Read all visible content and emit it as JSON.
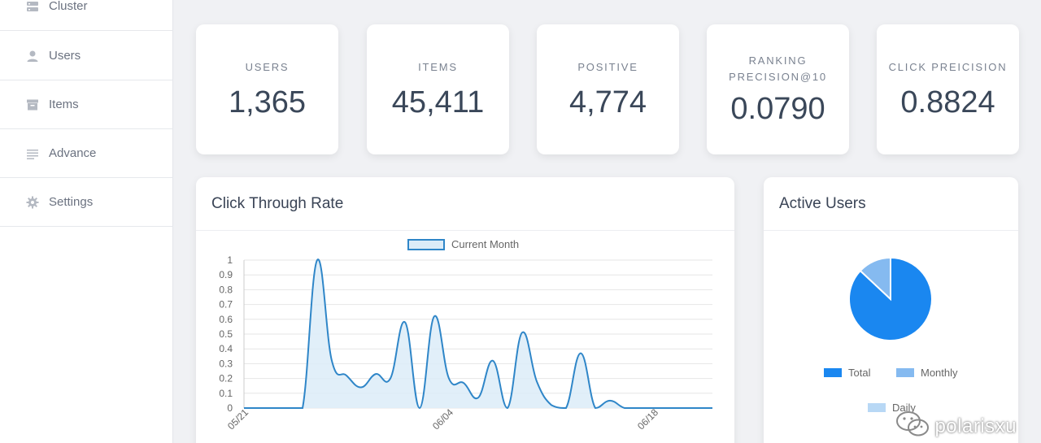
{
  "sidebar": {
    "items": [
      {
        "label": "Cluster",
        "icon": "server-icon"
      },
      {
        "label": "Users",
        "icon": "user-icon"
      },
      {
        "label": "Items",
        "icon": "archive-icon"
      },
      {
        "label": "Advance",
        "icon": "list-icon"
      },
      {
        "label": "Settings",
        "icon": "gear-icon"
      }
    ]
  },
  "stats": [
    {
      "label_lines": [
        "USERS"
      ],
      "value": "1,365"
    },
    {
      "label_lines": [
        "ITEMS"
      ],
      "value": "45,411"
    },
    {
      "label_lines": [
        "POSITIVE"
      ],
      "value": "4,774"
    },
    {
      "label_lines": [
        "RANKING",
        "PRECISION@10"
      ],
      "value": "0.0790"
    },
    {
      "label_lines": [
        "CLICK PREICISION"
      ],
      "value": "0.8824"
    }
  ],
  "ctr_panel": {
    "title": "Click Through Rate"
  },
  "active_users_panel": {
    "title": "Active Users"
  },
  "watermark": {
    "text": "polarisxu"
  },
  "chart_data": [
    {
      "type": "line",
      "title": "Click Through Rate",
      "series": [
        {
          "name": "Current Month",
          "color": "#2f86c8",
          "fill": "#dcecf8",
          "values": [
            0,
            0,
            0,
            0,
            0,
            1.0,
            0.32,
            0.22,
            0.14,
            0.23,
            0.2,
            0.58,
            0,
            0.62,
            0.2,
            0.17,
            0.07,
            0.32,
            0,
            0.51,
            0.18,
            0.02,
            0,
            0.37,
            0,
            0.05,
            0,
            0,
            0,
            0,
            0,
            0,
            0
          ]
        }
      ],
      "x_tick_labels": [
        "05/21",
        "06/04",
        "06/18"
      ],
      "x_tick_index": [
        0,
        14,
        28
      ],
      "y_ticks": [
        "0",
        "0.1",
        "0.2",
        "0.3",
        "0.4",
        "0.5",
        "0.6",
        "0.7",
        "0.8",
        "0.9",
        "1"
      ],
      "ylim": [
        0,
        1
      ],
      "grid": true,
      "legend": "top"
    },
    {
      "type": "pie",
      "title": "Active Users",
      "slices": [
        {
          "name": "Total",
          "value": 0.87,
          "color": "#1a87f0"
        },
        {
          "name": "Monthly",
          "value": 0.13,
          "color": "#85baf0"
        },
        {
          "name": "Daily",
          "value": 0,
          "color": "#b8d8f5"
        }
      ],
      "legend": "bottom"
    }
  ]
}
